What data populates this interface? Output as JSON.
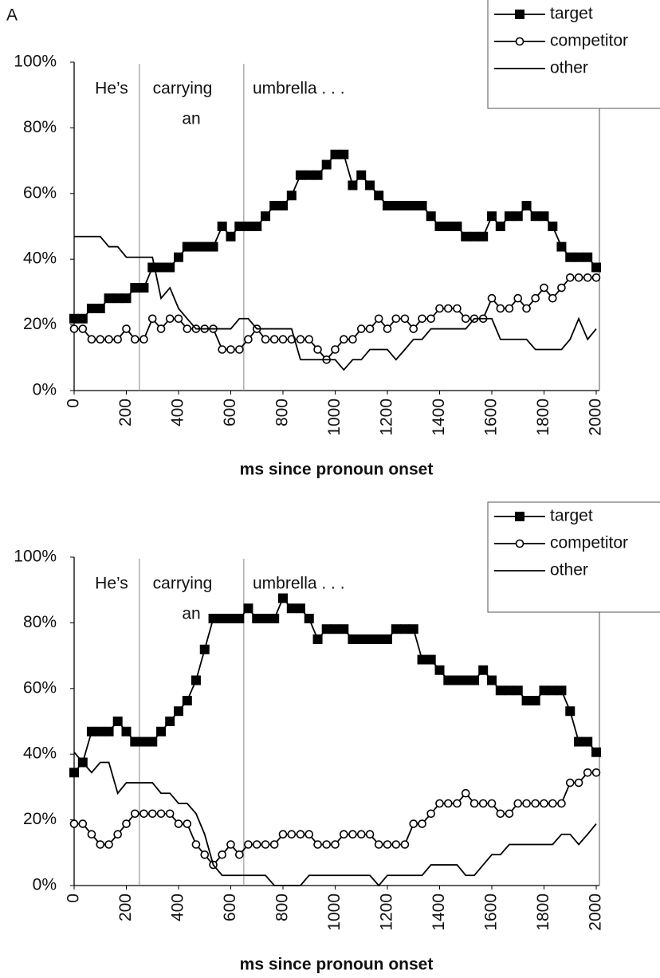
{
  "chart_data": [
    {
      "type": "line",
      "panel_label": "A",
      "xlabel": "ms since pronoun onset",
      "annotations": [
        "He’s",
        "carrying",
        "an",
        "umbrella . . ."
      ],
      "vlines": [
        250,
        650
      ],
      "xlim": [
        0,
        2000
      ],
      "ylim": [
        0,
        100
      ],
      "xticks": [
        0,
        200,
        400,
        600,
        800,
        1000,
        1200,
        1400,
        1600,
        1800,
        2000
      ],
      "yticks": [
        {
          "value": 0,
          "label": "0%"
        },
        {
          "value": 20,
          "label": "20%"
        },
        {
          "value": 40,
          "label": "40%"
        },
        {
          "value": 60,
          "label": "60%"
        },
        {
          "value": 80,
          "label": "80%"
        },
        {
          "value": 100,
          "label": "100%"
        }
      ],
      "legend": "upper right",
      "x": [
        0,
        33,
        67,
        100,
        133,
        167,
        200,
        233,
        267,
        300,
        333,
        367,
        400,
        433,
        467,
        500,
        533,
        567,
        600,
        633,
        667,
        700,
        733,
        767,
        800,
        833,
        867,
        900,
        933,
        967,
        1000,
        1033,
        1067,
        1100,
        1133,
        1167,
        1200,
        1233,
        1267,
        1300,
        1333,
        1367,
        1400,
        1433,
        1467,
        1500,
        1533,
        1567,
        1600,
        1633,
        1667,
        1700,
        1733,
        1767,
        1800,
        1833,
        1867,
        1900,
        1933,
        1967,
        2000
      ],
      "series": [
        {
          "name": "target",
          "color": "#000000",
          "marker": "square",
          "values": [
            21.9,
            21.9,
            25,
            25,
            28.1,
            28.1,
            28.1,
            31.3,
            31.3,
            37.5,
            37.5,
            37.5,
            40.6,
            43.8,
            43.8,
            43.8,
            43.8,
            50,
            46.9,
            50,
            50,
            50,
            53.1,
            56.3,
            56.3,
            59.4,
            65.6,
            65.6,
            65.6,
            68.8,
            71.9,
            71.9,
            62.5,
            65.6,
            62.5,
            59.4,
            56.3,
            56.3,
            56.3,
            56.3,
            56.3,
            53.1,
            50,
            50,
            50,
            46.9,
            46.9,
            46.9,
            53.1,
            50,
            53.1,
            53.1,
            56.3,
            53.1,
            53.1,
            50,
            43.8,
            40.6,
            40.6,
            40.6,
            37.5
          ]
        },
        {
          "name": "competitor",
          "color": "#000000",
          "marker": "circle",
          "values": [
            18.8,
            18.8,
            15.6,
            15.6,
            15.6,
            15.6,
            18.8,
            15.6,
            15.6,
            21.9,
            18.8,
            21.9,
            21.9,
            18.8,
            18.8,
            18.8,
            18.8,
            12.5,
            12.5,
            12.5,
            15.6,
            18.8,
            15.6,
            15.6,
            15.6,
            15.6,
            15.6,
            15.6,
            12.5,
            9.4,
            12.5,
            15.6,
            15.6,
            18.8,
            18.8,
            21.9,
            18.8,
            21.9,
            21.9,
            18.8,
            21.9,
            21.9,
            25,
            25,
            25,
            21.9,
            21.9,
            21.9,
            28.1,
            25,
            25,
            28.1,
            25,
            28.1,
            31.3,
            28.1,
            31.3,
            34.4,
            34.4,
            34.4,
            34.4
          ]
        },
        {
          "name": "other",
          "color": "#000000",
          "marker": "none",
          "values": [
            46.9,
            46.9,
            46.9,
            46.9,
            43.8,
            43.8,
            40.6,
            40.6,
            40.6,
            40.6,
            28.1,
            31.3,
            25,
            21.9,
            18.8,
            18.8,
            18.8,
            18.8,
            18.8,
            21.9,
            21.9,
            18.8,
            18.8,
            18.8,
            18.8,
            18.8,
            9.4,
            9.4,
            9.4,
            9.4,
            9.4,
            6.3,
            9.4,
            9.4,
            12.5,
            12.5,
            12.5,
            9.4,
            12.5,
            15.6,
            15.6,
            18.8,
            18.8,
            18.8,
            18.8,
            18.8,
            21.9,
            21.9,
            21.9,
            15.6,
            15.6,
            15.6,
            15.6,
            12.5,
            12.5,
            12.5,
            12.5,
            15.6,
            21.9,
            15.6,
            18.8
          ]
        }
      ]
    },
    {
      "type": "line",
      "xlabel": "ms since pronoun onset",
      "annotations": [
        "He’s",
        "carrying",
        "an",
        "umbrella . . ."
      ],
      "vlines": [
        250,
        650
      ],
      "xlim": [
        0,
        2000
      ],
      "ylim": [
        0,
        100
      ],
      "xticks": [
        0,
        200,
        400,
        600,
        800,
        1000,
        1200,
        1400,
        1600,
        1800,
        2000
      ],
      "yticks": [
        {
          "value": 0,
          "label": "0%"
        },
        {
          "value": 20,
          "label": "20%"
        },
        {
          "value": 40,
          "label": "40%"
        },
        {
          "value": 60,
          "label": "60%"
        },
        {
          "value": 80,
          "label": "80%"
        },
        {
          "value": 100,
          "label": "100%"
        }
      ],
      "legend": "upper right",
      "x": [
        0,
        33,
        67,
        100,
        133,
        167,
        200,
        233,
        267,
        300,
        333,
        367,
        400,
        433,
        467,
        500,
        533,
        567,
        600,
        633,
        667,
        700,
        733,
        767,
        800,
        833,
        867,
        900,
        933,
        967,
        1000,
        1033,
        1067,
        1100,
        1133,
        1167,
        1200,
        1233,
        1267,
        1300,
        1333,
        1367,
        1400,
        1433,
        1467,
        1500,
        1533,
        1567,
        1600,
        1633,
        1667,
        1700,
        1733,
        1767,
        1800,
        1833,
        1867,
        1900,
        1933,
        1967,
        2000
      ],
      "series": [
        {
          "name": "target",
          "color": "#000000",
          "marker": "square",
          "values": [
            34.4,
            37.5,
            46.9,
            46.9,
            46.9,
            50,
            46.9,
            43.8,
            43.8,
            43.8,
            46.9,
            50,
            53.1,
            56.3,
            62.5,
            71.9,
            81.3,
            81.3,
            81.3,
            81.3,
            84.4,
            81.3,
            81.3,
            81.3,
            87.5,
            84.4,
            84.4,
            81.3,
            75,
            78.1,
            78.1,
            78.1,
            75,
            75,
            75,
            75,
            75,
            78.1,
            78.1,
            78.1,
            68.8,
            68.8,
            65.6,
            62.5,
            62.5,
            62.5,
            62.5,
            65.6,
            62.5,
            59.4,
            59.4,
            59.4,
            56.3,
            56.3,
            59.4,
            59.4,
            59.4,
            53.1,
            43.8,
            43.8,
            40.6
          ]
        },
        {
          "name": "competitor",
          "color": "#000000",
          "marker": "circle",
          "values": [
            18.8,
            18.8,
            15.6,
            12.5,
            12.5,
            15.6,
            18.8,
            21.9,
            21.9,
            21.9,
            21.9,
            21.9,
            18.8,
            18.8,
            12.5,
            9.4,
            6.3,
            9.4,
            12.5,
            9.4,
            12.5,
            12.5,
            12.5,
            12.5,
            15.6,
            15.6,
            15.6,
            15.6,
            12.5,
            12.5,
            12.5,
            15.6,
            15.6,
            15.6,
            15.6,
            12.5,
            12.5,
            12.5,
            12.5,
            18.8,
            18.8,
            21.9,
            25,
            25,
            25,
            28.1,
            25,
            25,
            25,
            21.9,
            21.9,
            25,
            25,
            25,
            25,
            25,
            25,
            31.3,
            31.3,
            34.4,
            34.4
          ]
        },
        {
          "name": "other",
          "color": "#000000",
          "marker": "none",
          "values": [
            40.6,
            37.5,
            34.4,
            37.5,
            37.5,
            28.1,
            31.3,
            31.3,
            31.3,
            31.3,
            28.1,
            28.1,
            25,
            25,
            21.9,
            15.6,
            6.3,
            3.1,
            3.1,
            3.1,
            3.1,
            3.1,
            3.1,
            0,
            0,
            0,
            0,
            3.1,
            3.1,
            3.1,
            3.1,
            3.1,
            3.1,
            3.1,
            3.1,
            0,
            3.1,
            3.1,
            3.1,
            3.1,
            3.1,
            6.3,
            6.3,
            6.3,
            6.3,
            3.1,
            3.1,
            6.3,
            9.4,
            9.4,
            12.5,
            12.5,
            12.5,
            12.5,
            12.5,
            12.5,
            15.6,
            15.6,
            12.5,
            15.6,
            18.8
          ]
        }
      ]
    }
  ]
}
